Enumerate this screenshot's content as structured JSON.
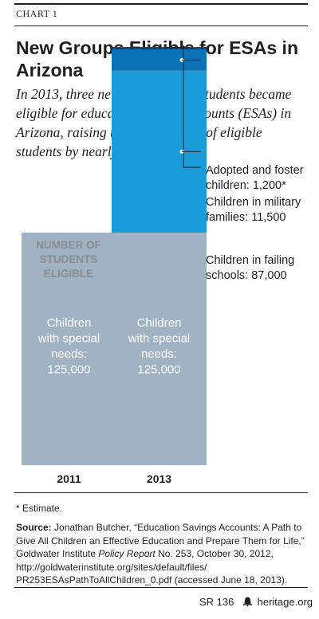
{
  "label": "CHART 1",
  "title": "New Groups Eligible for ESAs in Arizona",
  "subtitle": "In 2013, three new categories of students became eligible for education savings accounts (ESAs) in Arizona, raising the total number of eligible students by nearly 100,000.",
  "axis_label": [
    "NUMBER OF",
    "STUDENTS",
    "ELIGIBLE"
  ],
  "colors": {
    "special_needs": "#9fb3c4",
    "failing_schools": "#1a9cd8",
    "military": "#0b72b5",
    "adopted_foster": "#0d3d6b",
    "text": "#231f20",
    "bar_text": "#ffffff"
  },
  "chart_data": {
    "type": "bar",
    "stacked": true,
    "categories": [
      "2011",
      "2013"
    ],
    "series": [
      {
        "name": "Children with special needs",
        "values": [
          125000,
          125000
        ],
        "label_lines": [
          "Children",
          "with special",
          "needs:",
          "125,000"
        ]
      },
      {
        "name": "Children in failing schools",
        "values": [
          0,
          87000
        ],
        "label_lines": [
          "Children in failing",
          "schools: 87,000"
        ]
      },
      {
        "name": "Children in military families",
        "values": [
          0,
          11500
        ],
        "label_lines": [
          "Children in military",
          "families: 11,500"
        ]
      },
      {
        "name": "Adopted and foster children",
        "values": [
          0,
          1200
        ],
        "label_lines": [
          "Adopted and foster",
          "children: 1,200*"
        ]
      }
    ]
  },
  "note": "* Estimate.",
  "source_label": "Source:",
  "source_text_1": " Jonathan Butcher, “Education Savings Accounts: A Path to Give All Children an Effective Education and Prepare Them for Life,” Goldwater Institute ",
  "source_italic": "Policy Report",
  "source_text_2": " No. 253, October 30, 2012, http://goldwaterinstitute.org/sites/default/files/ PR253ESAsPathToAllChildren_0.pdf (accessed June 18, 2013).",
  "footer": {
    "report": "SR 136",
    "site": "heritage.org"
  }
}
